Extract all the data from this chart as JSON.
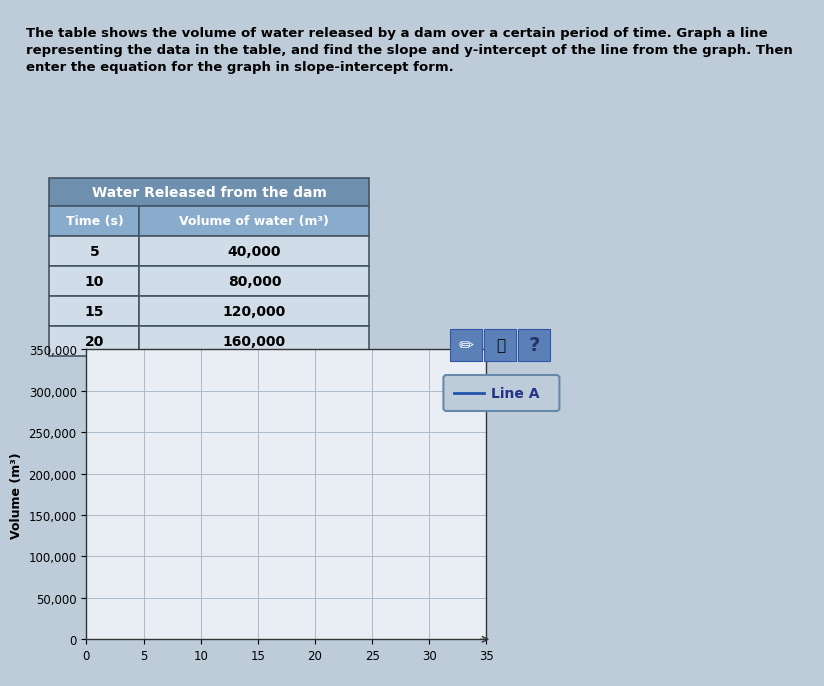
{
  "title_line1": "The table shows the volume of water released by a dam over a certain period of time. Graph a line",
  "title_line2": "representing the data in the table, and find the slope and y-intercept of the line from the graph. Then",
  "title_line3": "enter the equation for the graph in slope-intercept form.",
  "table_title": "Water Released from the dam",
  "col1_header": "Time (s)",
  "col2_header": "Volume of water (m³)",
  "table_data": [
    [
      "5",
      "40,000"
    ],
    [
      "10",
      "80,000"
    ],
    [
      "15",
      "120,000"
    ],
    [
      "20",
      "160,000"
    ]
  ],
  "graph_ylabel": "Volume (m³)",
  "x_ticks": [
    0,
    5,
    10,
    15,
    20,
    25,
    30,
    35
  ],
  "y_ticks": [
    0,
    50000,
    100000,
    150000,
    200000,
    250000,
    300000,
    350000
  ],
  "xlim": [
    0,
    35
  ],
  "ylim": [
    0,
    350000
  ],
  "legend_label": "Line A",
  "line_color": "#2255aa",
  "bg_color": "#beccda",
  "table_header_bg": "#6e8fad",
  "table_subheader_bg": "#8aaccc",
  "table_header_text": "#ffffff",
  "table_row_bg1": "#d0dce8",
  "table_row_bg2": "#e0eaf4",
  "table_border_color": "#445566",
  "grid_color": "#aabbcc",
  "plot_bg": "#e8eef4",
  "icon_bg": "#5b80b8",
  "title_fontsize": 9.5,
  "axis_label_fontsize": 9,
  "tick_fontsize": 8.5
}
